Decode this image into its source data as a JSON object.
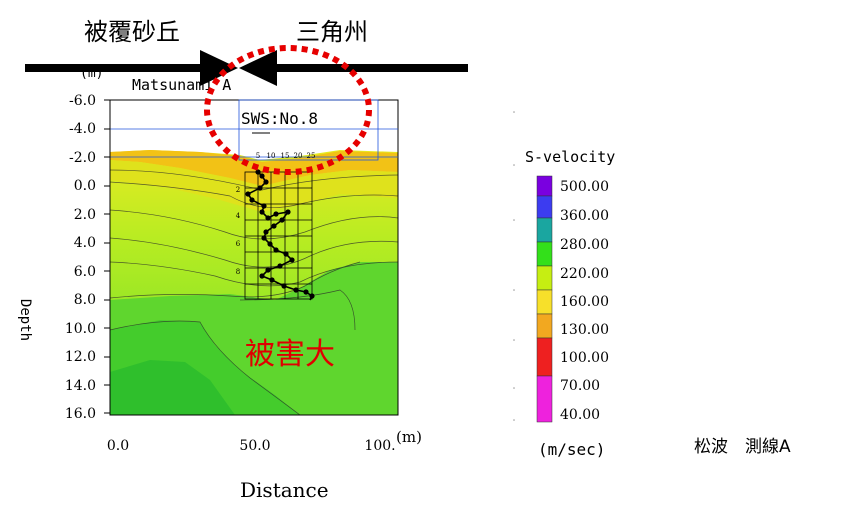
{
  "header": {
    "left_label": "被覆砂丘",
    "right_label": "三角州"
  },
  "section": {
    "name": "Matsunami A",
    "y_unit": "(m)",
    "x_unit": "(m)",
    "y_axis_label": "Depth",
    "x_axis_label": "Distance",
    "y_ticks": [
      "-6.0",
      "-4.0",
      "-2.0",
      "0.0",
      "2.0",
      "4.0",
      "6.0",
      "8.0",
      "10.0",
      "12.0",
      "14.0",
      "16.0"
    ],
    "x_ticks": [
      "0.0",
      "50.0",
      "100."
    ],
    "damage_label": "被害大",
    "damage_color": "#e00000"
  },
  "sws": {
    "label": "SWS:No.8",
    "top_ticks": [
      "5",
      "10",
      "15",
      "20",
      "25"
    ],
    "depth_ticks": [
      "2",
      "4",
      "6",
      "8"
    ]
  },
  "legend": {
    "title": "S-velocity",
    "unit": "(m/sec)",
    "entries": [
      {
        "label": "500.00",
        "color": "#7a00e0"
      },
      {
        "label": "360.00",
        "color": "#3c3cf0"
      },
      {
        "label": "280.00",
        "color": "#1aa6a0"
      },
      {
        "label": "220.00",
        "color": "#33e01a"
      },
      {
        "label": "160.00",
        "color": "#c6ee12"
      },
      {
        "label": "130.00",
        "color": "#f7e02a"
      },
      {
        "label": "100.00",
        "color": "#f2a820"
      },
      {
        "label": "70.00",
        "color": "#ee2020"
      },
      {
        "label": "40.00",
        "color": "#ee22dd"
      }
    ]
  },
  "footer": {
    "survey_line_label": "松波　測線A"
  }
}
